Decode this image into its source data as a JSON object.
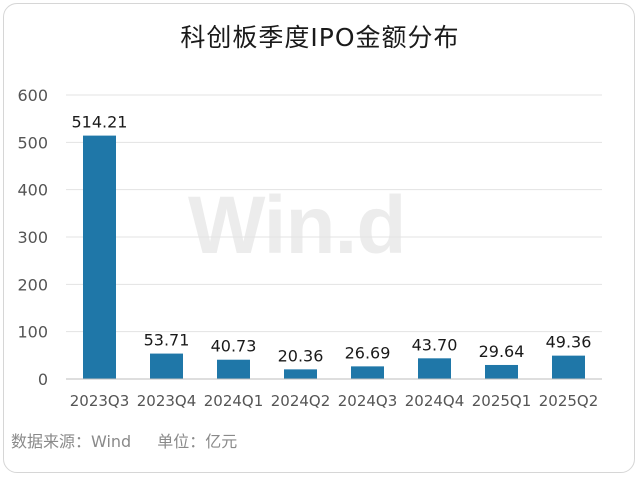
{
  "title": "科创板季度IPO金额分布",
  "footer": {
    "source": "数据来源：Wind",
    "unit": "单位：亿元"
  },
  "watermark": "Win.d",
  "colors": {
    "bar": "#1f77a8",
    "grid": "#e3e3e3",
    "axis": "#bdbdbd",
    "label": "#1a1a1a",
    "tick": "#555555"
  },
  "chart_data": {
    "type": "bar",
    "title": "科创板季度IPO金额分布",
    "categories": [
      "2023Q3",
      "2023Q4",
      "2024Q1",
      "2024Q2",
      "2024Q3",
      "2024Q4",
      "2025Q1",
      "2025Q2"
    ],
    "values": [
      514.21,
      53.71,
      40.73,
      20.36,
      26.69,
      43.7,
      29.64,
      49.36
    ],
    "value_labels": [
      "514.21",
      "53.71",
      "40.73",
      "20.36",
      "26.69",
      "43.70",
      "29.64",
      "49.36"
    ],
    "ylim": [
      0,
      600
    ],
    "yticks": [
      0,
      100,
      200,
      300,
      400,
      500,
      600
    ],
    "grid": true,
    "legend": "none"
  }
}
